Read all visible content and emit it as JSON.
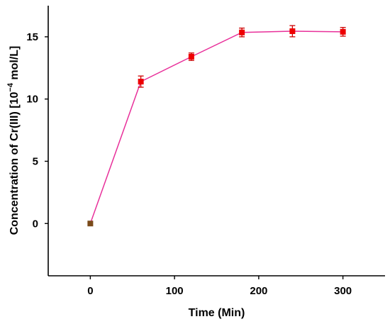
{
  "chart_data": {
    "type": "line",
    "title": "",
    "xlabel": "Time (Min)",
    "ylabel": {
      "main": "Concentration of Cr(III) [10",
      "sup": "−4",
      "tail": " mol/L]"
    },
    "xlim": [
      -50,
      350
    ],
    "ylim": [
      -4.2,
      17.5
    ],
    "xticks": [
      0,
      100,
      200,
      300
    ],
    "yticks": [
      0,
      5,
      10,
      15
    ],
    "grid": false,
    "series": [
      {
        "x": [
          0,
          60,
          120,
          180,
          240,
          300
        ],
        "y": [
          0,
          11.4,
          13.4,
          15.35,
          15.45,
          15.4
        ],
        "error": [
          0,
          0.45,
          0.3,
          0.35,
          0.45,
          0.35
        ],
        "color": "#e8309a",
        "marker_color": "#ee0000",
        "first_marker_color": "#7a4a1a"
      }
    ]
  }
}
